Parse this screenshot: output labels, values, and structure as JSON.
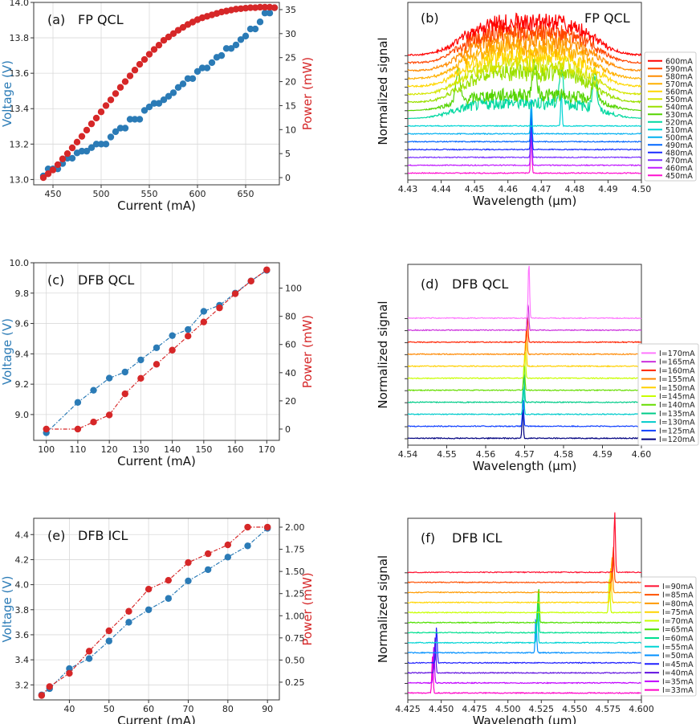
{
  "colors": {
    "voltage": "#2b7bb6",
    "power": "#d62728",
    "grid": "#d9d9d9"
  },
  "chart_data": [
    {
      "id": "a",
      "type": "scatter",
      "panel_label": "(a)",
      "title": "FP QCL",
      "xlabel": "Current (mA)",
      "ylabel_left": "Voltage (V)",
      "ylabel_right": "Power (mW)",
      "xlim": [
        430,
        685
      ],
      "ylim_left": [
        12.97,
        14.0
      ],
      "ylim_right": [
        -1.5,
        36.5
      ],
      "xticks": [
        450,
        500,
        550,
        600,
        650
      ],
      "yticks_left": [
        "13.0",
        "13.2",
        "13.4",
        "13.6",
        "13.8",
        "14.0"
      ],
      "yticks_right": [
        "0",
        "5",
        "10",
        "15",
        "20",
        "25",
        "30",
        "35"
      ],
      "series": [
        {
          "name": "Voltage",
          "axis": "left",
          "linestyle": "none",
          "x": [
            440,
            445,
            450,
            455,
            460,
            465,
            470,
            475,
            480,
            485,
            490,
            495,
            500,
            505,
            510,
            515,
            520,
            525,
            530,
            535,
            540,
            545,
            550,
            555,
            560,
            565,
            570,
            575,
            580,
            585,
            590,
            595,
            600,
            605,
            610,
            615,
            620,
            625,
            630,
            635,
            640,
            645,
            650,
            655,
            660,
            665,
            670,
            675,
            680
          ],
          "y": [
            13.02,
            13.06,
            13.06,
            13.06,
            13.09,
            13.12,
            13.12,
            13.15,
            13.16,
            13.16,
            13.18,
            13.2,
            13.2,
            13.2,
            13.24,
            13.27,
            13.29,
            13.29,
            13.34,
            13.34,
            13.34,
            13.39,
            13.41,
            13.43,
            13.43,
            13.45,
            13.47,
            13.49,
            13.52,
            13.54,
            13.57,
            13.57,
            13.61,
            13.63,
            13.63,
            13.66,
            13.69,
            13.7,
            13.74,
            13.74,
            13.76,
            13.79,
            13.81,
            13.85,
            13.85,
            13.89,
            13.94,
            13.94,
            13.97
          ]
        },
        {
          "name": "Power",
          "axis": "right",
          "linestyle": "none",
          "x": [
            440,
            445,
            450,
            455,
            460,
            465,
            470,
            475,
            480,
            485,
            490,
            495,
            500,
            505,
            510,
            515,
            520,
            525,
            530,
            535,
            540,
            545,
            550,
            555,
            560,
            565,
            570,
            575,
            580,
            585,
            590,
            595,
            600,
            605,
            610,
            615,
            620,
            625,
            630,
            635,
            640,
            645,
            650,
            655,
            660,
            665,
            670,
            675,
            680
          ],
          "y": [
            0,
            0.8,
            1.6,
            2.7,
            3.9,
            5.0,
            6.2,
            7.4,
            8.6,
            9.9,
            11.2,
            12.4,
            13.7,
            15.0,
            16.2,
            17.5,
            18.8,
            20.0,
            21.2,
            22.4,
            23.6,
            24.6,
            25.7,
            26.7,
            27.6,
            28.6,
            29.3,
            30.0,
            30.7,
            31.3,
            31.9,
            32.4,
            32.9,
            33.3,
            33.6,
            33.9,
            34.2,
            34.5,
            34.7,
            34.9,
            35.1,
            35.2,
            35.3,
            35.4,
            35.4,
            35.5,
            35.5,
            35.5,
            35.4
          ]
        }
      ]
    },
    {
      "id": "b",
      "type": "line",
      "panel_label": "(b)",
      "title": "FP QCL",
      "xlabel": "Wavelength (μm)",
      "ylabel": "Normalized signal",
      "xlim": [
        4.43,
        4.5
      ],
      "xticks": [
        "4.43",
        "4.44",
        "4.45",
        "4.46",
        "4.47",
        "4.48",
        "4.49",
        "4.50"
      ],
      "legend_position": "right",
      "legend": [
        "600mA",
        "590mA",
        "580mA",
        "570mA",
        "560mA",
        "550mA",
        "540mA",
        "530mA",
        "520mA",
        "510mA",
        "500mA",
        "490mA",
        "480mA",
        "470mA",
        "460mA",
        "450mA"
      ],
      "series_colors": [
        "#ff0000",
        "#ff4500",
        "#ff8c00",
        "#ffb000",
        "#ffd700",
        "#d4e600",
        "#9be000",
        "#55d400",
        "#00d8a0",
        "#00d4d4",
        "#00b0f0",
        "#0066ff",
        "#1a2bff",
        "#7a30ff",
        "#c21bff",
        "#ff10d0"
      ],
      "peaks_um": [
        [],
        [],
        [],
        [],
        [],
        [],
        [],
        [
          4.445,
          4.468,
          4.486
        ],
        [
          4.476,
          4.486
        ],
        [
          4.476
        ],
        [
          4.467
        ],
        [
          4.467
        ],
        [
          4.467
        ],
        [
          4.467
        ],
        [
          4.467
        ],
        [
          4.467
        ]
      ]
    },
    {
      "id": "c",
      "type": "scatter",
      "panel_label": "(c)",
      "title": "DFB QCL",
      "xlabel": "Current (mA)",
      "ylabel_left": "Voltage (V)",
      "ylabel_right": "Power (mW)",
      "xlim": [
        96,
        174
      ],
      "ylim_left": [
        8.83,
        10.0
      ],
      "ylim_right": [
        -8,
        118
      ],
      "xticks": [
        100,
        110,
        120,
        130,
        140,
        150,
        160,
        170
      ],
      "yticks_left": [
        "9.0",
        "9.2",
        "9.4",
        "9.6",
        "9.8",
        "10.0"
      ],
      "yticks_right": [
        "0",
        "20",
        "40",
        "60",
        "80",
        "100"
      ],
      "series": [
        {
          "name": "Voltage",
          "axis": "left",
          "linestyle": "dashdot",
          "x": [
            100,
            110,
            115,
            120,
            125,
            130,
            135,
            140,
            145,
            150,
            155,
            160,
            165,
            170
          ],
          "y": [
            8.88,
            9.08,
            9.16,
            9.24,
            9.28,
            9.36,
            9.44,
            9.52,
            9.56,
            9.68,
            9.72,
            9.8,
            9.88,
            9.95
          ]
        },
        {
          "name": "Power",
          "axis": "right",
          "linestyle": "dashdot",
          "x": [
            100,
            110,
            115,
            120,
            125,
            130,
            135,
            140,
            145,
            150,
            155,
            160,
            165,
            170
          ],
          "y": [
            0,
            0,
            5,
            10,
            25,
            36,
            46,
            56,
            66,
            76,
            86,
            96,
            105,
            113
          ]
        }
      ]
    },
    {
      "id": "d",
      "type": "line",
      "panel_label": "(d)",
      "title": "DFB QCL",
      "xlabel": "Wavelength (μm)",
      "ylabel": "Normalized signal",
      "xlim": [
        4.54,
        4.6
      ],
      "xticks": [
        "4.54",
        "4.55",
        "4.56",
        "4.57",
        "4.58",
        "4.59",
        "4.60"
      ],
      "legend_position": "right",
      "legend": [
        "I=170mA",
        "I=165mA",
        "I=160mA",
        "I=155mA",
        "I=150mA",
        "I=145mA",
        "I=140mA",
        "I=135mA",
        "I=130mA",
        "I=125mA",
        "I=120mA"
      ],
      "series_colors": [
        "#ff77ff",
        "#cc33dd",
        "#ff2200",
        "#ff8800",
        "#ffd000",
        "#c8ff00",
        "#66dd00",
        "#00cc88",
        "#00cccc",
        "#1040ff",
        "#000080"
      ],
      "peaks_um": [
        [
          4.5711
        ],
        [
          4.5709
        ],
        [
          4.5707
        ],
        [
          4.5705
        ],
        [
          4.5703
        ],
        [
          4.5701
        ],
        [
          4.5699
        ],
        [
          4.5698
        ],
        [
          4.5697
        ],
        [
          4.5696
        ],
        [
          4.5695
        ]
      ]
    },
    {
      "id": "e",
      "type": "scatter",
      "panel_label": "(e)",
      "title": "DFB ICL",
      "xlabel": "Current (mA)",
      "ylabel_left": "Voltage (V)",
      "ylabel_right": "Power (mW)",
      "xlim": [
        31,
        93
      ],
      "ylim_left": [
        3.08,
        4.53
      ],
      "ylim_right": [
        0.05,
        2.1
      ],
      "xticks": [
        40,
        50,
        60,
        70,
        80,
        90
      ],
      "yticks_left": [
        "3.2",
        "3.4",
        "3.6",
        "3.8",
        "4.0",
        "4.2",
        "4.4"
      ],
      "yticks_right": [
        "0.25",
        "0.50",
        "0.75",
        "1.00",
        "1.25",
        "1.50",
        "1.75",
        "2.00"
      ],
      "series": [
        {
          "name": "Voltage",
          "axis": "left",
          "linestyle": "dashdot",
          "x": [
            33,
            35,
            40,
            45,
            50,
            55,
            60,
            65,
            70,
            75,
            80,
            85,
            90
          ],
          "y": [
            3.12,
            3.17,
            3.33,
            3.41,
            3.55,
            3.7,
            3.8,
            3.89,
            4.03,
            4.12,
            4.22,
            4.31,
            4.45
          ]
        },
        {
          "name": "Power",
          "axis": "right",
          "linestyle": "dashdot",
          "x": [
            33,
            35,
            40,
            45,
            50,
            55,
            60,
            65,
            70,
            75,
            80,
            85,
            90
          ],
          "y": [
            0.1,
            0.2,
            0.35,
            0.6,
            0.83,
            1.05,
            1.3,
            1.4,
            1.6,
            1.7,
            1.8,
            2.0,
            2.0
          ]
        }
      ]
    },
    {
      "id": "f",
      "type": "line",
      "panel_label": "(f)",
      "title": "DFB ICL",
      "xlabel": "Wavelength (μm)",
      "ylabel": "Normalized signal",
      "xlim": [
        4.425,
        4.6
      ],
      "xticks": [
        "4.425",
        "4.450",
        "4.475",
        "4.500",
        "4.525",
        "4.550",
        "4.575",
        "4.600"
      ],
      "legend_position": "right",
      "legend": [
        "I=90mA",
        "I=85mA",
        "I=80mA",
        "I=75mA",
        "I=70mA",
        "I=65mA",
        "I=60mA",
        "I=55mA",
        "I=50mA",
        "I=45mA",
        "I=40mA",
        "I=35mA",
        "I=33mA"
      ],
      "series_colors": [
        "#ff1030",
        "#ff5000",
        "#ff9a00",
        "#ffd400",
        "#c8ff00",
        "#50e000",
        "#00e090",
        "#00d4d4",
        "#0090ff",
        "#2020ff",
        "#6010e0",
        "#c000ff",
        "#ff00c8"
      ],
      "peaks_um": [
        [
          4.58
        ],
        [
          4.579
        ],
        [
          4.578
        ],
        [
          4.577
        ],
        [
          4.576
        ],
        [
          4.523
        ],
        [
          4.5225
        ],
        [
          4.522
        ],
        [
          4.521
        ],
        [
          4.4465
        ],
        [
          4.4455
        ],
        [
          4.4445
        ],
        [
          4.4435
        ]
      ]
    }
  ]
}
